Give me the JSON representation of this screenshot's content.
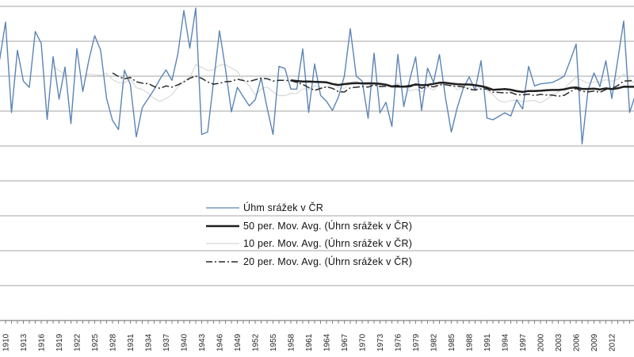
{
  "chart": {
    "background": "#ffffff",
    "gridline_color": "#a6a6a6",
    "axis_color": "#808080",
    "tick_color": "#808080",
    "tick_label_color": "#262626",
    "legend": {
      "position": "inside-bottom-center",
      "items": [
        {
          "label": "Úhm srážek v ČR",
          "color": "#5b84b5",
          "style": "thin"
        },
        {
          "label": "50 per. Mov. Avg. (Úhrn srážek v ČR)",
          "color": "#1f1f1f",
          "style": "thick"
        },
        {
          "label": "10 per. Mov. Avg. (Úhrn srážek v ČR)",
          "color": "#d6d6d6",
          "style": "thin"
        },
        {
          "label": "20 per. Mov. Avg. (Úhrn srážek v ČR)",
          "color": "#2a2a2a",
          "style": "dashdot"
        }
      ]
    }
  },
  "chart_data": {
    "type": "line",
    "title": "",
    "xlabel": "",
    "ylabel": "",
    "grid": "horizontal-only",
    "y_axis_labels_visible": false,
    "ylim": [
      0,
      900
    ],
    "y_gridline_step": 100,
    "x_tick_label_step": 3,
    "x_tick_labels": [
      1910,
      1913,
      1916,
      1919,
      1922,
      1925,
      1928,
      1931,
      1934,
      1937,
      1940,
      1943,
      1946,
      1949,
      1952,
      1955,
      1958,
      1961,
      1964,
      1967,
      1970,
      1973,
      1976,
      1979,
      1982,
      1985,
      1988,
      1991,
      1994,
      1997,
      2000,
      2003,
      2006,
      2009,
      2012
    ],
    "x": [
      1909,
      1910,
      1911,
      1912,
      1913,
      1914,
      1915,
      1916,
      1917,
      1918,
      1919,
      1920,
      1921,
      1922,
      1923,
      1924,
      1925,
      1926,
      1927,
      1928,
      1929,
      1930,
      1931,
      1932,
      1933,
      1934,
      1935,
      1936,
      1937,
      1938,
      1939,
      1940,
      1941,
      1942,
      1943,
      1944,
      1945,
      1946,
      1947,
      1948,
      1949,
      1950,
      1951,
      1952,
      1953,
      1954,
      1955,
      1956,
      1957,
      1958,
      1959,
      1960,
      1961,
      1962,
      1963,
      1964,
      1965,
      1966,
      1967,
      1968,
      1969,
      1970,
      1971,
      1972,
      1973,
      1974,
      1975,
      1976,
      1977,
      1978,
      1979,
      1980,
      1981,
      1982,
      1983,
      1984,
      1985,
      1986,
      1987,
      1988,
      1989,
      1990,
      1991,
      1992,
      1993,
      1994,
      1995,
      1996,
      1997,
      1998,
      1999,
      2000,
      2001,
      2002,
      2003,
      2004,
      2005,
      2006,
      2007,
      2008,
      2009,
      2010,
      2011,
      2012,
      2013,
      2014,
      2015,
      2016
    ],
    "series": [
      {
        "name": "Úhm srážek v ČR",
        "kind": "annual-values",
        "color": "#5b84b5",
        "values": [
          746,
          855,
          596,
          774,
          686,
          668,
          828,
          794,
          576,
          756,
          634,
          726,
          564,
          779,
          656,
          745,
          816,
          774,
          636,
          573,
          547,
          717,
          676,
          526,
          610,
          636,
          662,
          692,
          718,
          688,
          764,
          888,
          780,
          895,
          533,
          540,
          684,
          830,
          721,
          598,
          668,
          641,
          615,
          632,
          695,
          610,
          533,
          728,
          722,
          663,
          663,
          778,
          596,
          735,
          645,
          628,
          602,
          640,
          700,
          836,
          700,
          686,
          579,
          766,
          595,
          625,
          556,
          762,
          613,
          690,
          755,
          602,
          723,
          682,
          762,
          640,
          540,
          610,
          665,
          698,
          660,
          744,
          580,
          575,
          585,
          595,
          586,
          632,
          606,
          728,
          672,
          678,
          680,
          682,
          690,
          700,
          745,
          792,
          506,
          660,
          709,
          670,
          744,
          636,
          747,
          858,
          596,
          648
        ]
      },
      {
        "name": "50 per. Mov. Avg. (Úhrn srážek v ČR)",
        "kind": "moving-average",
        "period": 50,
        "color": "#1f1f1f"
      },
      {
        "name": "10 per. Mov. Avg. (Úhrn srážek v ČR)",
        "kind": "moving-average",
        "period": 10,
        "color": "#d6d6d6"
      },
      {
        "name": "20 per. Mov. Avg. (Úhrn srážek v ČR)",
        "kind": "moving-average",
        "period": 20,
        "color": "#2a2a2a"
      }
    ]
  }
}
